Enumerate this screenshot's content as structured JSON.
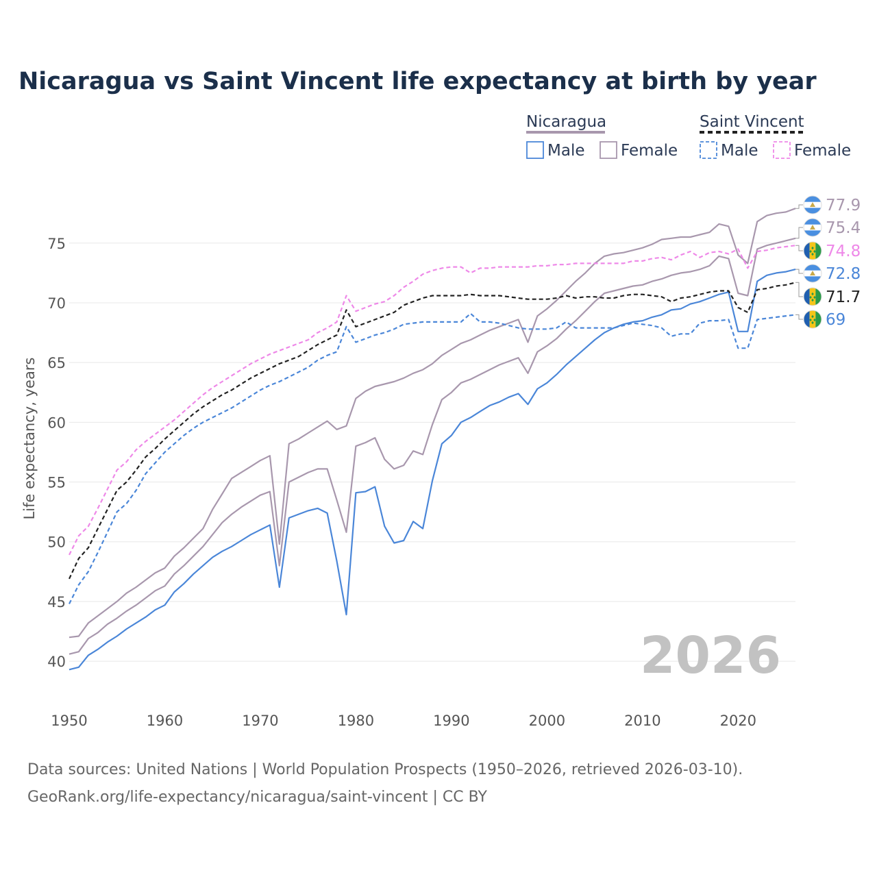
{
  "chart_data": {
    "type": "line",
    "title": "Nicaragua vs Saint Vincent life expectancy at birth by year",
    "ylabel": "Life expectancy, years",
    "xlabel": "",
    "xlim": [
      1950,
      2026
    ],
    "ylim": [
      38,
      79
    ],
    "x_ticks": [
      1950,
      1960,
      1970,
      1980,
      1990,
      2000,
      2010,
      2020
    ],
    "y_ticks": [
      40,
      45,
      50,
      55,
      60,
      65,
      70,
      75
    ],
    "grid": true,
    "watermark_year": "2026",
    "legend": {
      "groups": [
        {
          "country": "Nicaragua",
          "entries": [
            "Male",
            "Female"
          ]
        },
        {
          "country": "Saint Vincent",
          "entries": [
            "Male",
            "Female"
          ]
        }
      ]
    },
    "x": [
      1950,
      1951,
      1952,
      1953,
      1954,
      1955,
      1956,
      1957,
      1958,
      1959,
      1960,
      1961,
      1962,
      1963,
      1964,
      1965,
      1966,
      1967,
      1968,
      1969,
      1970,
      1971,
      1972,
      1973,
      1974,
      1975,
      1976,
      1977,
      1978,
      1979,
      1980,
      1981,
      1982,
      1983,
      1984,
      1985,
      1986,
      1987,
      1988,
      1989,
      1990,
      1991,
      1992,
      1993,
      1994,
      1995,
      1996,
      1997,
      1998,
      1999,
      2000,
      2001,
      2002,
      2003,
      2004,
      2005,
      2006,
      2007,
      2008,
      2009,
      2010,
      2011,
      2012,
      2013,
      2014,
      2015,
      2016,
      2017,
      2018,
      2019,
      2020,
      2021,
      2022,
      2023,
      2024,
      2025,
      2026
    ],
    "series": [
      {
        "name": "Nicaragua Female",
        "country": "Nicaragua",
        "sex": "Female",
        "color": "#a897ad",
        "dash": "solid",
        "end_value": "77.9",
        "values": [
          42.0,
          42.1,
          43.2,
          43.8,
          44.4,
          45.0,
          45.7,
          46.2,
          46.8,
          47.4,
          47.8,
          48.8,
          49.5,
          50.3,
          51.1,
          52.7,
          54.0,
          55.3,
          55.8,
          56.3,
          56.8,
          57.2,
          49.8,
          58.2,
          58.6,
          59.1,
          59.6,
          60.1,
          59.4,
          59.7,
          62.0,
          62.6,
          63.0,
          63.2,
          63.4,
          63.7,
          64.1,
          64.4,
          64.9,
          65.6,
          66.1,
          66.6,
          66.9,
          67.3,
          67.7,
          68.0,
          68.3,
          68.6,
          66.7,
          68.9,
          69.5,
          70.2,
          71.0,
          71.8,
          72.5,
          73.3,
          73.9,
          74.1,
          74.2,
          74.4,
          74.6,
          74.9,
          75.3,
          75.4,
          75.5,
          75.5,
          75.7,
          75.9,
          76.6,
          76.4,
          74.0,
          73.3,
          76.8,
          77.3,
          77.5,
          77.6,
          77.9
        ]
      },
      {
        "name": "Nicaragua Both",
        "country": "Nicaragua",
        "sex": "Both",
        "color": "#a897ad",
        "dash": "solid",
        "end_value": "75.4",
        "values": [
          40.6,
          40.8,
          41.9,
          42.4,
          43.1,
          43.6,
          44.2,
          44.7,
          45.3,
          45.9,
          46.3,
          47.3,
          48.0,
          48.8,
          49.6,
          50.6,
          51.6,
          52.3,
          52.9,
          53.4,
          53.9,
          54.2,
          48.0,
          55.0,
          55.4,
          55.8,
          56.1,
          56.1,
          53.5,
          50.8,
          58.0,
          58.3,
          58.7,
          56.9,
          56.1,
          56.4,
          57.6,
          57.3,
          59.8,
          61.9,
          62.5,
          63.3,
          63.6,
          64.0,
          64.4,
          64.8,
          65.1,
          65.4,
          64.1,
          65.9,
          66.4,
          67.0,
          67.8,
          68.5,
          69.3,
          70.1,
          70.8,
          71.0,
          71.2,
          71.4,
          71.5,
          71.8,
          72.0,
          72.3,
          72.5,
          72.6,
          72.8,
          73.1,
          73.9,
          73.7,
          70.8,
          70.6,
          74.5,
          74.8,
          75.0,
          75.2,
          75.4
        ]
      },
      {
        "name": "Nicaragua Male",
        "country": "Nicaragua",
        "sex": "Male",
        "color": "#4a86d8",
        "dash": "solid",
        "end_value": "72.8",
        "values": [
          39.3,
          39.5,
          40.5,
          41.0,
          41.6,
          42.1,
          42.7,
          43.2,
          43.7,
          44.3,
          44.7,
          45.8,
          46.5,
          47.3,
          48.0,
          48.7,
          49.2,
          49.6,
          50.1,
          50.6,
          51.0,
          51.4,
          46.2,
          52.0,
          52.3,
          52.6,
          52.8,
          52.4,
          48.4,
          43.9,
          54.1,
          54.2,
          54.6,
          51.3,
          49.9,
          50.1,
          51.7,
          51.1,
          55.1,
          58.2,
          58.9,
          60.0,
          60.4,
          60.9,
          61.4,
          61.7,
          62.1,
          62.4,
          61.5,
          62.8,
          63.3,
          64.0,
          64.8,
          65.5,
          66.2,
          66.9,
          67.5,
          67.9,
          68.2,
          68.4,
          68.5,
          68.8,
          69.0,
          69.4,
          69.5,
          69.9,
          70.1,
          70.4,
          70.7,
          70.9,
          67.6,
          67.6,
          71.8,
          72.3,
          72.5,
          72.6,
          72.8
        ]
      },
      {
        "name": "Saint Vincent Female",
        "country": "Saint Vincent",
        "sex": "Female",
        "color": "#ee88e8",
        "dash": "dashed",
        "end_value": "74.8",
        "values": [
          48.9,
          50.5,
          51.3,
          52.8,
          54.4,
          56.0,
          56.7,
          57.7,
          58.4,
          59.0,
          59.6,
          60.2,
          60.9,
          61.6,
          62.3,
          62.9,
          63.4,
          63.9,
          64.4,
          64.9,
          65.3,
          65.7,
          66.0,
          66.3,
          66.6,
          66.9,
          67.5,
          67.9,
          68.4,
          70.6,
          69.3,
          69.6,
          69.9,
          70.1,
          70.6,
          71.3,
          71.8,
          72.4,
          72.7,
          72.9,
          73.0,
          73.0,
          72.5,
          72.9,
          72.9,
          73.0,
          73.0,
          73.0,
          73.0,
          73.1,
          73.1,
          73.2,
          73.2,
          73.3,
          73.3,
          73.3,
          73.3,
          73.3,
          73.3,
          73.5,
          73.5,
          73.7,
          73.8,
          73.6,
          74.0,
          74.3,
          73.8,
          74.2,
          74.3,
          74.1,
          74.5,
          72.9,
          74.3,
          74.4,
          74.6,
          74.7,
          74.8
        ]
      },
      {
        "name": "Saint Vincent Both",
        "country": "Saint Vincent",
        "sex": "Both",
        "color": "#222222",
        "dash": "dashed",
        "end_value": "71.7",
        "values": [
          46.9,
          48.6,
          49.5,
          51.1,
          52.7,
          54.3,
          55.0,
          56.0,
          57.1,
          57.8,
          58.6,
          59.3,
          60.0,
          60.7,
          61.3,
          61.8,
          62.3,
          62.7,
          63.2,
          63.7,
          64.1,
          64.5,
          64.9,
          65.2,
          65.5,
          66.0,
          66.5,
          66.9,
          67.3,
          69.4,
          68.0,
          68.3,
          68.6,
          68.9,
          69.2,
          69.8,
          70.1,
          70.4,
          70.6,
          70.6,
          70.6,
          70.6,
          70.7,
          70.6,
          70.6,
          70.6,
          70.5,
          70.4,
          70.3,
          70.3,
          70.3,
          70.4,
          70.6,
          70.4,
          70.5,
          70.5,
          70.4,
          70.4,
          70.6,
          70.7,
          70.7,
          70.6,
          70.5,
          70.1,
          70.4,
          70.5,
          70.7,
          70.9,
          71.0,
          71.0,
          69.6,
          69.2,
          71.1,
          71.2,
          71.4,
          71.5,
          71.7
        ]
      },
      {
        "name": "Saint Vincent Male",
        "country": "Saint Vincent",
        "sex": "Male",
        "color": "#4a86d8",
        "dash": "dashed",
        "end_value": "69",
        "values": [
          44.8,
          46.4,
          47.5,
          49.1,
          50.8,
          52.5,
          53.2,
          54.3,
          55.7,
          56.6,
          57.5,
          58.2,
          58.9,
          59.5,
          60.0,
          60.4,
          60.8,
          61.2,
          61.7,
          62.2,
          62.7,
          63.1,
          63.4,
          63.8,
          64.2,
          64.6,
          65.2,
          65.6,
          65.9,
          68.0,
          66.7,
          67.0,
          67.3,
          67.5,
          67.8,
          68.2,
          68.3,
          68.4,
          68.4,
          68.4,
          68.4,
          68.4,
          69.1,
          68.4,
          68.4,
          68.3,
          68.1,
          67.9,
          67.8,
          67.8,
          67.8,
          67.9,
          68.4,
          67.9,
          67.9,
          67.9,
          67.9,
          67.9,
          68.1,
          68.3,
          68.2,
          68.1,
          67.9,
          67.2,
          67.4,
          67.4,
          68.3,
          68.5,
          68.5,
          68.6,
          66.2,
          66.2,
          68.6,
          68.7,
          68.8,
          68.9,
          69.0
        ]
      }
    ]
  },
  "source": {
    "line1": "Data sources: United Nations | World Population Prospects (1950–2026, retrieved 2026-03-10).",
    "line2": "GeoRank.org/life-expectancy/nicaragua/saint-vincent | CC BY"
  }
}
